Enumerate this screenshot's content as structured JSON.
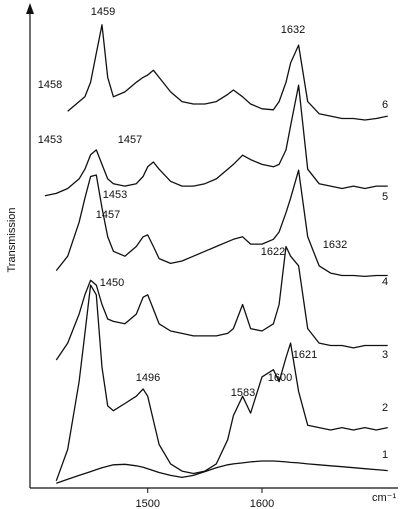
{
  "chart_data": {
    "type": "line",
    "y_label": "Transmission",
    "x_label": "cm⁻¹",
    "x": [
      1410,
      1420,
      1430,
      1440,
      1445,
      1450,
      1455,
      1460,
      1465,
      1470,
      1480,
      1490,
      1496,
      1500,
      1505,
      1510,
      1520,
      1530,
      1540,
      1550,
      1560,
      1570,
      1575,
      1583,
      1590,
      1600,
      1610,
      1615,
      1621,
      1625,
      1632,
      1640,
      1650,
      1660,
      1670,
      1680,
      1690,
      1700,
      1710
    ],
    "xlim": [
      1397,
      1719
    ],
    "xticks": [
      1500,
      1600
    ],
    "ylim": [
      0,
      100
    ],
    "series": [
      {
        "name": "1",
        "color": "#111111",
        "values": [
          null,
          1.0,
          1.8,
          2.6,
          3.0,
          3.4,
          3.8,
          4.2,
          4.5,
          4.8,
          4.9,
          4.6,
          4.3,
          4.0,
          3.6,
          3.2,
          2.6,
          2.2,
          2.6,
          3.4,
          4.2,
          4.8,
          5.0,
          5.2,
          5.4,
          5.6,
          5.6,
          5.5,
          5.4,
          5.3,
          5.2,
          5.0,
          4.8,
          4.6,
          4.4,
          4.2,
          4.0,
          3.8,
          3.6
        ]
      },
      {
        "name": "2",
        "color": "#111111",
        "values": [
          null,
          1.5,
          8,
          22,
          32,
          42,
          40,
          25,
          17,
          16,
          17.5,
          19,
          20.5,
          19,
          14,
          9,
          5,
          3.5,
          3,
          3.5,
          5,
          10,
          15,
          19,
          15.5,
          23,
          24.5,
          22,
          27,
          30,
          20,
          13,
          12.5,
          12,
          12.5,
          12,
          12.5,
          12,
          12.5
        ]
      },
      {
        "name": "3",
        "color": "#111111",
        "values": [
          null,
          26.5,
          30,
          36,
          40,
          43,
          42,
          38,
          35,
          34.5,
          34,
          36,
          39.5,
          40,
          37,
          34,
          32.5,
          32,
          31.5,
          31.5,
          31.5,
          32,
          33,
          38,
          33,
          32.5,
          34,
          38,
          50,
          48,
          46,
          33,
          30,
          29.5,
          29.5,
          29,
          29.5,
          29.5,
          29.5
        ]
      },
      {
        "name": "4",
        "color": "#111111",
        "values": [
          null,
          45,
          48,
          55,
          60,
          64.5,
          64.8,
          58,
          52,
          49,
          48,
          50,
          52,
          52.4,
          50,
          47.5,
          46.5,
          47,
          48,
          49,
          50,
          51,
          51.5,
          52,
          50.5,
          50.5,
          51.5,
          53,
          57,
          60,
          65.8,
          52,
          46,
          44.5,
          44,
          44,
          43.8,
          44,
          44
        ]
      },
      {
        "name": "5",
        "color": "#111111",
        "values": [
          60.5,
          61,
          62,
          64,
          66,
          69,
          70,
          67,
          64,
          63,
          62.5,
          63,
          64.5,
          66.5,
          67.5,
          66,
          63.5,
          62.5,
          62.5,
          63,
          64,
          66,
          67,
          68.9,
          68,
          67,
          66.5,
          67,
          70,
          75,
          83.4,
          66,
          63,
          62.5,
          62,
          62.5,
          62,
          62.5,
          62.5
        ]
      },
      {
        "name": "6",
        "color": "#111111",
        "values": [
          null,
          null,
          78,
          80,
          81,
          84,
          90,
          95.9,
          85,
          81,
          82,
          84,
          85,
          85.5,
          86.5,
          85,
          82,
          80,
          79.5,
          79.5,
          80,
          81.5,
          82.4,
          81,
          79.5,
          78.5,
          78.3,
          80,
          84,
          88,
          91.7,
          80,
          77.5,
          77,
          76.5,
          76.5,
          76.2,
          76.5,
          77
        ]
      }
    ],
    "annotations": [
      "1459",
      "1632",
      "1458",
      "1453",
      "1457",
      "1453",
      "1457",
      "1622",
      "1632",
      "1450",
      "1621",
      "1600",
      "1583",
      "1496"
    ]
  }
}
